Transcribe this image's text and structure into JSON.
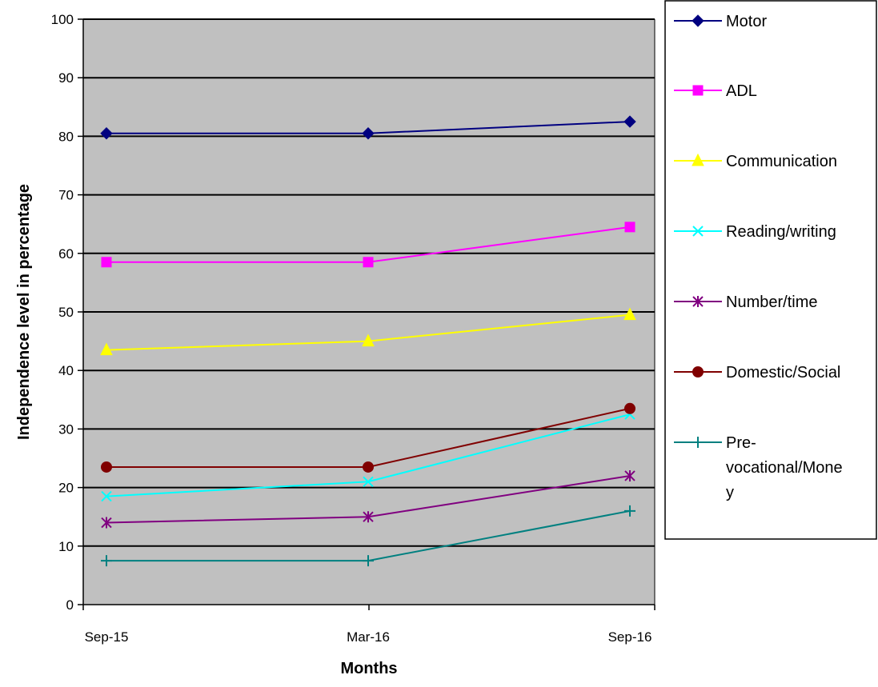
{
  "chart_data": {
    "type": "line",
    "title": "",
    "xlabel": "Months",
    "ylabel": "Independence level in percentage",
    "categories": [
      "Sep-15",
      "Mar-16",
      "Sep-16"
    ],
    "ylim": [
      0,
      100
    ],
    "yticks": [
      0,
      10,
      20,
      30,
      40,
      50,
      60,
      70,
      80,
      90,
      100
    ],
    "grid": true,
    "plot_background": "#c0c0c0",
    "legend_position": "right",
    "series": [
      {
        "name": "Motor",
        "values": [
          80.5,
          80.5,
          82.5
        ],
        "color": "#000080",
        "marker": "diamond"
      },
      {
        "name": "ADL",
        "values": [
          58.5,
          58.5,
          64.5
        ],
        "color": "#ff00ff",
        "marker": "square"
      },
      {
        "name": "Communication",
        "values": [
          43.5,
          45,
          49.5
        ],
        "color": "#ffff00",
        "marker": "triangle"
      },
      {
        "name": "Reading/writing",
        "values": [
          18.5,
          21,
          32.5
        ],
        "color": "#00ffff",
        "marker": "x"
      },
      {
        "name": "Number/time",
        "values": [
          14,
          15,
          22
        ],
        "color": "#800080",
        "marker": "star"
      },
      {
        "name": "Domestic/Social",
        "values": [
          23.5,
          23.5,
          33.5
        ],
        "color": "#800000",
        "marker": "circle"
      },
      {
        "name": "Pre-vocational/Money",
        "values": [
          7.5,
          7.5,
          16
        ],
        "color": "#008080",
        "marker": "plus"
      }
    ]
  }
}
